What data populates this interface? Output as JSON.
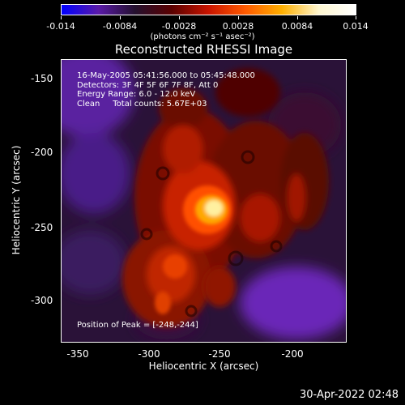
{
  "colorbar": {
    "ticks": [
      "-0.014",
      "-0.0084",
      "-0.0028",
      "0.0028",
      "0.0084",
      "0.014"
    ],
    "units": "(photons cm⁻² s⁻¹ asec⁻²)",
    "gradient": [
      "#0000ff",
      "#5a1aa8",
      "#24102e",
      "#5a0000",
      "#c81400",
      "#ff5a00",
      "#ffb000",
      "#fff7d0",
      "#ffffff"
    ]
  },
  "title": "Reconstructed RHESSI Image",
  "info": {
    "line1": "16-May-2005 05:41:56.000 to 05:45:48.000",
    "line2": "Detectors: 3F 4F 5F 6F 7F 8F, Att 0",
    "line3": "Energy Range: 6.0 - 12.0 keV",
    "line4": "Clean     Total counts: 5.67E+03"
  },
  "peak": "Position of Peak = [-248,-244]",
  "axes": {
    "xlabel": "Heliocentric X (arcsec)",
    "ylabel": "Heliocentric Y (arcsec)",
    "xticks": [
      "-350",
      "-300",
      "-250",
      "-200"
    ],
    "yticks": [
      "-150",
      "-200",
      "-250",
      "-300"
    ]
  },
  "timestamp": "30-Apr-2022 02:48"
}
